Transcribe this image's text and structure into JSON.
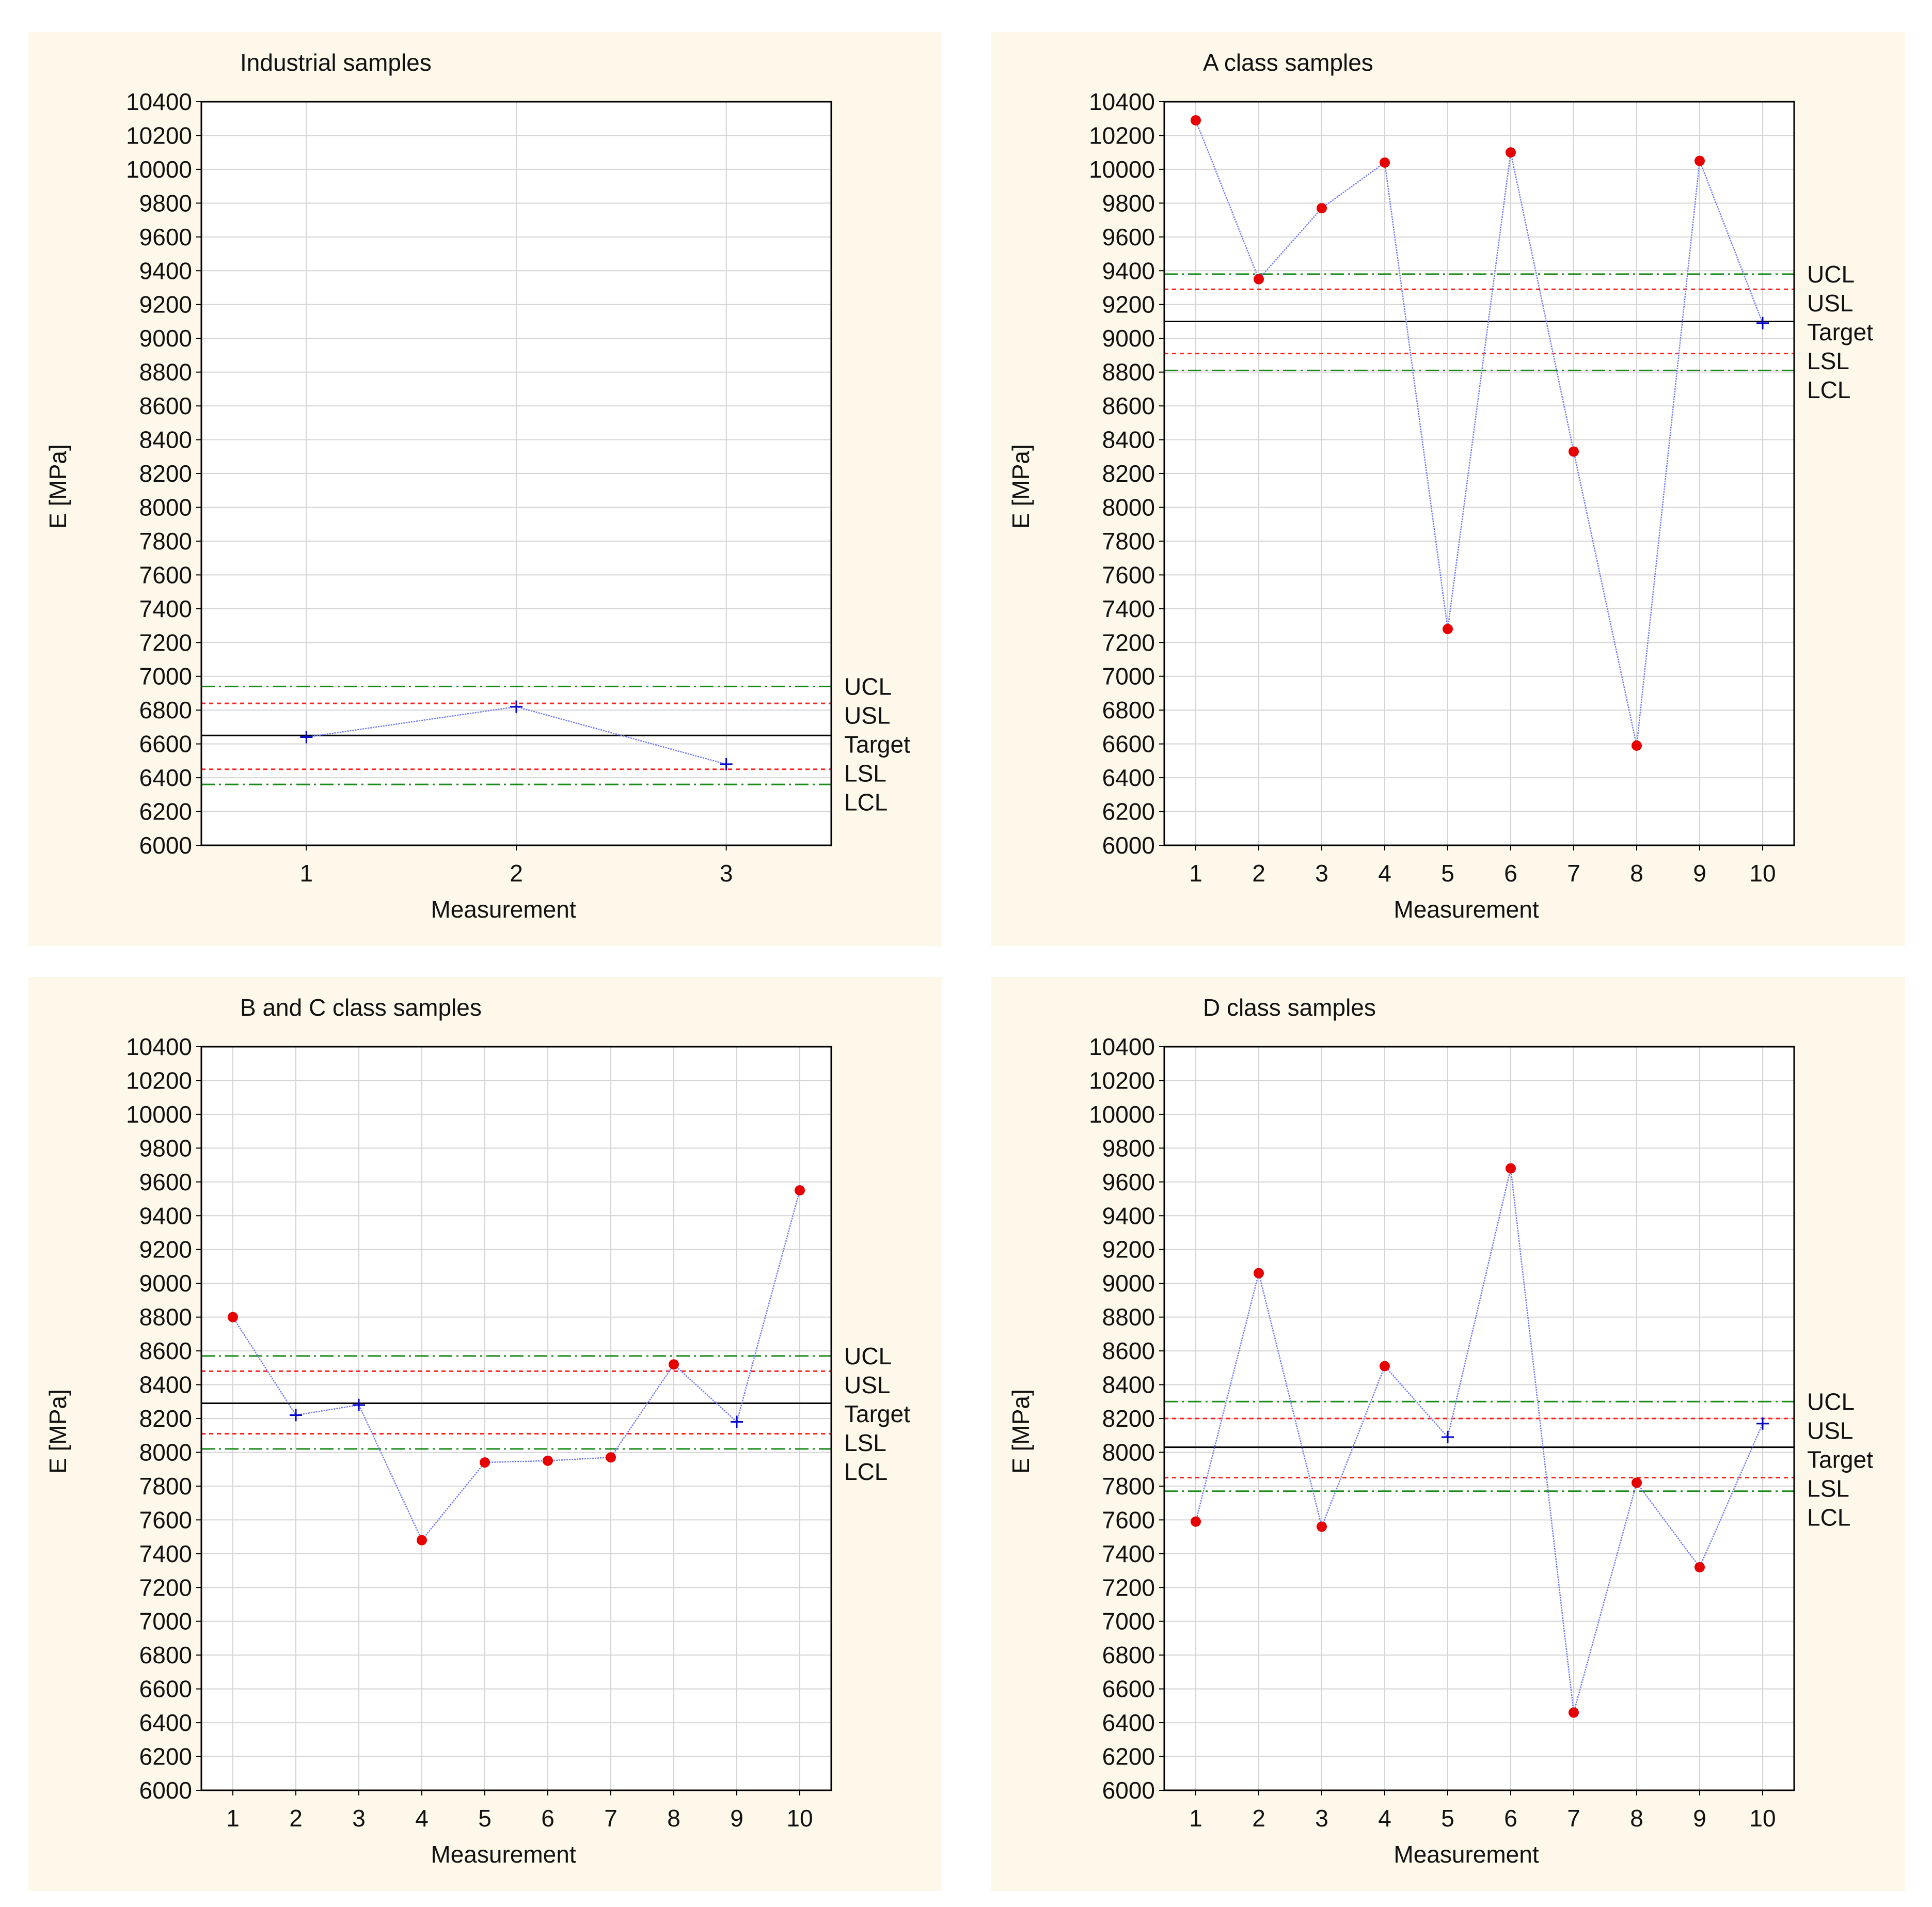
{
  "colors": {
    "panel_bg": "#fdf8ea",
    "plot_bg": "#ffffff",
    "grid": "#d4d4d4",
    "series_line": "#6f7bff",
    "in_control_marker": "#0000cc",
    "out_of_control_marker": "#e60000",
    "control_limit": "#1a8a1a",
    "spec_limit": "#ff2020",
    "target": "#000000"
  },
  "chart_data": [
    {
      "type": "line",
      "title": "Industrial samples",
      "xlabel": "Measurement",
      "ylabel": "E [MPa]",
      "ylim": [
        6000,
        10400
      ],
      "ytick_step": 200,
      "yticks": [
        "6000",
        "6200",
        "6400",
        "6600",
        "6800",
        "7000",
        "7200",
        "7400",
        "7600",
        "7800",
        "8000",
        "8200",
        "8400",
        "8600",
        "8800",
        "9000",
        "9200",
        "9400",
        "9600",
        "9800",
        "10000",
        "10200",
        "10400"
      ],
      "x": [
        1,
        2,
        3
      ],
      "xtick_labels": [
        "1",
        "2",
        "3"
      ],
      "values": [
        6640,
        6820,
        6480
      ],
      "out_of_control": [
        false,
        false,
        false
      ],
      "limits": [
        {
          "label": "UCL",
          "value": 6940,
          "style": "control"
        },
        {
          "label": "USL",
          "value": 6840,
          "style": "spec"
        },
        {
          "label": "Target",
          "value": 6650,
          "style": "target"
        },
        {
          "label": "LSL",
          "value": 6450,
          "style": "spec"
        },
        {
          "label": "LCL",
          "value": 6360,
          "style": "control"
        }
      ],
      "grid": true
    },
    {
      "type": "line",
      "title": "A class samples",
      "xlabel": "Measurement",
      "ylabel": "E [MPa]",
      "ylim": [
        6000,
        10400
      ],
      "ytick_step": 200,
      "yticks": [
        "6000",
        "6200",
        "6400",
        "6600",
        "6800",
        "7000",
        "7200",
        "7400",
        "7600",
        "7800",
        "8000",
        "8200",
        "8400",
        "8600",
        "8800",
        "9000",
        "9200",
        "9400",
        "9600",
        "9800",
        "10000",
        "10200",
        "10400"
      ],
      "x": [
        1,
        2,
        3,
        4,
        5,
        6,
        7,
        8,
        9,
        10
      ],
      "xtick_labels": [
        "1",
        "2",
        "3",
        "4",
        "5",
        "6",
        "7",
        "8",
        "9",
        "10"
      ],
      "values": [
        10290,
        9350,
        9770,
        10040,
        7280,
        10100,
        8330,
        6590,
        10050,
        9090
      ],
      "out_of_control": [
        true,
        true,
        true,
        true,
        true,
        true,
        true,
        true,
        true,
        false
      ],
      "limits": [
        {
          "label": "UCL",
          "value": 9380,
          "style": "control"
        },
        {
          "label": "USL",
          "value": 9290,
          "style": "spec"
        },
        {
          "label": "Target",
          "value": 9100,
          "style": "target"
        },
        {
          "label": "LSL",
          "value": 8910,
          "style": "spec"
        },
        {
          "label": "LCL",
          "value": 8810,
          "style": "control"
        }
      ],
      "grid": true
    },
    {
      "type": "line",
      "title": "B and C class samples",
      "xlabel": "Measurement",
      "ylabel": "E [MPa]",
      "ylim": [
        6000,
        10400
      ],
      "ytick_step": 200,
      "yticks": [
        "6000",
        "6200",
        "6400",
        "6600",
        "6800",
        "7000",
        "7200",
        "7400",
        "7600",
        "7800",
        "8000",
        "8200",
        "8400",
        "8600",
        "8800",
        "9000",
        "9200",
        "9400",
        "9600",
        "9800",
        "10000",
        "10200",
        "10400"
      ],
      "x": [
        1,
        2,
        3,
        4,
        5,
        6,
        7,
        8,
        9,
        10
      ],
      "xtick_labels": [
        "1",
        "2",
        "3",
        "4",
        "5",
        "6",
        "7",
        "8",
        "9",
        "10"
      ],
      "values": [
        8800,
        8220,
        8280,
        7480,
        7940,
        7950,
        7970,
        8520,
        8180,
        9550
      ],
      "out_of_control": [
        true,
        false,
        false,
        true,
        true,
        true,
        true,
        true,
        false,
        true
      ],
      "limits": [
        {
          "label": "UCL",
          "value": 8570,
          "style": "control"
        },
        {
          "label": "USL",
          "value": 8480,
          "style": "spec"
        },
        {
          "label": "Target",
          "value": 8290,
          "style": "target"
        },
        {
          "label": "LSL",
          "value": 8110,
          "style": "spec"
        },
        {
          "label": "LCL",
          "value": 8020,
          "style": "control"
        }
      ],
      "grid": true
    },
    {
      "type": "line",
      "title": "D class samples",
      "xlabel": "Measurement",
      "ylabel": "E [MPa]",
      "ylim": [
        6000,
        10400
      ],
      "ytick_step": 200,
      "yticks": [
        "6000",
        "6200",
        "6400",
        "6600",
        "6800",
        "7000",
        "7200",
        "7400",
        "7600",
        "7800",
        "8000",
        "8200",
        "8400",
        "8600",
        "8800",
        "9000",
        "9200",
        "9400",
        "9600",
        "9800",
        "10000",
        "10200",
        "10400"
      ],
      "x": [
        1,
        2,
        3,
        4,
        5,
        6,
        7,
        8,
        9,
        10
      ],
      "xtick_labels": [
        "1",
        "2",
        "3",
        "4",
        "5",
        "6",
        "7",
        "8",
        "9",
        "10"
      ],
      "values": [
        7590,
        9060,
        7560,
        8510,
        8090,
        9680,
        6460,
        7820,
        7320,
        8170
      ],
      "out_of_control": [
        true,
        true,
        true,
        true,
        false,
        true,
        true,
        true,
        true,
        false
      ],
      "limits": [
        {
          "label": "UCL",
          "value": 8300,
          "style": "control"
        },
        {
          "label": "USL",
          "value": 8200,
          "style": "spec"
        },
        {
          "label": "Target",
          "value": 8030,
          "style": "target"
        },
        {
          "label": "LSL",
          "value": 7850,
          "style": "spec"
        },
        {
          "label": "LCL",
          "value": 7770,
          "style": "control"
        }
      ],
      "grid": true
    }
  ]
}
